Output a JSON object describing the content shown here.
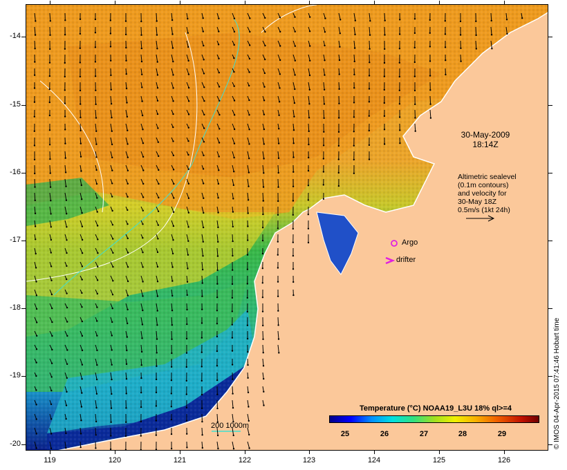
{
  "map": {
    "y_ticks": [
      "-14",
      "-15",
      "-16",
      "-17",
      "-18",
      "-19",
      "-20"
    ],
    "x_ticks": [
      "119",
      "120",
      "121",
      "122",
      "123",
      "124",
      "125",
      "126"
    ],
    "date": "30-May-2009",
    "time": "18:14Z",
    "altimetry_lines": [
      "Altimetric sealevel",
      "(0.1m contours)",
      "and velocity for",
      "30-May 18Z",
      "0.5m/s (1kt 24h)"
    ],
    "argo_label": "Argo",
    "drifter_label": "drifter",
    "scale_label": "200  1000m",
    "colorbar_title": "Temperature (°C) NOAA19_L3U 18% ql>=4",
    "colorbar_ticks": [
      "25",
      "26",
      "27",
      "28",
      "29"
    ],
    "credit": "© IMOS 04-Apr-2015 07:41:46 Hobart time",
    "colors": {
      "land": "#fbc89a",
      "argo": "#e020e0",
      "drifter": "#e020e0",
      "contour": "#40e0d0",
      "sealevel_contour": "#ffffff"
    }
  }
}
